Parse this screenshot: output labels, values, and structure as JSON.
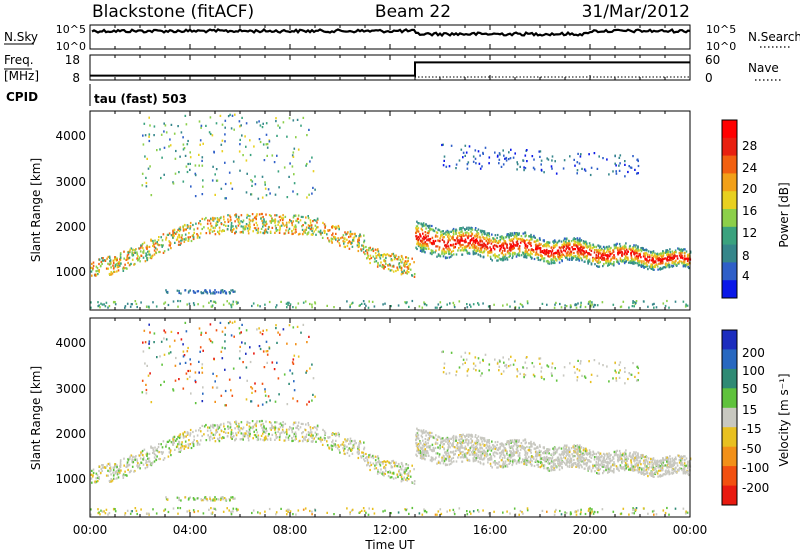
{
  "chart_data": {
    "type": "heatmap",
    "title": {
      "station": "Blackstone (fitACF)",
      "beam": "Beam 22",
      "date": "31/Mar/2012"
    },
    "strip_nsky": {
      "label": "N.Sky",
      "ticks": [
        "10^5",
        "10^0"
      ],
      "right_ticks": [
        "10^5",
        "10^0"
      ],
      "right_label": "N.Search"
    },
    "strip_freq": {
      "label_line1": "Freq.",
      "label_line2": "[MHz]",
      "ticks": [
        "18",
        "8"
      ],
      "right_ticks": [
        "60",
        "0"
      ],
      "right_label": "Nave",
      "step_hour": 13,
      "freq_before": 10,
      "freq_after": 16
    },
    "cpid": {
      "label": "CPID",
      "value": "tau (fast) 503"
    },
    "xaxis": {
      "label": "Time UT",
      "ticks": [
        "00:00",
        "04:00",
        "08:00",
        "12:00",
        "16:00",
        "20:00",
        "00:00"
      ],
      "range": [
        0,
        24
      ]
    },
    "yaxis": {
      "label": "Slant Range [km]",
      "ticks": [
        "1000",
        "2000",
        "3000",
        "4000"
      ],
      "range": [
        180,
        4500
      ]
    },
    "power_panel": {
      "colorbar_label": "Power [dB]",
      "colorbar_ticks": [
        "4",
        "8",
        "12",
        "16",
        "20",
        "24",
        "28"
      ],
      "colors": [
        "#0a18e8",
        "#2f5fc8",
        "#35868a",
        "#3aa27e",
        "#8ccf4a",
        "#e8d020",
        "#f2a018",
        "#f26010",
        "#e82010",
        "#ff0000"
      ]
    },
    "velocity_panel": {
      "colorbar_label": "Velocity [m s⁻¹]",
      "colorbar_ticks": [
        "200",
        "100",
        "50",
        "15",
        "-15",
        "-50",
        "-100",
        "-200"
      ],
      "colors": [
        "#1c2dbe",
        "#2868c0",
        "#2f8a74",
        "#5fc23c",
        "#c8c8c0",
        "#e8c020",
        "#f29018",
        "#f25010",
        "#e81a10"
      ]
    }
  }
}
